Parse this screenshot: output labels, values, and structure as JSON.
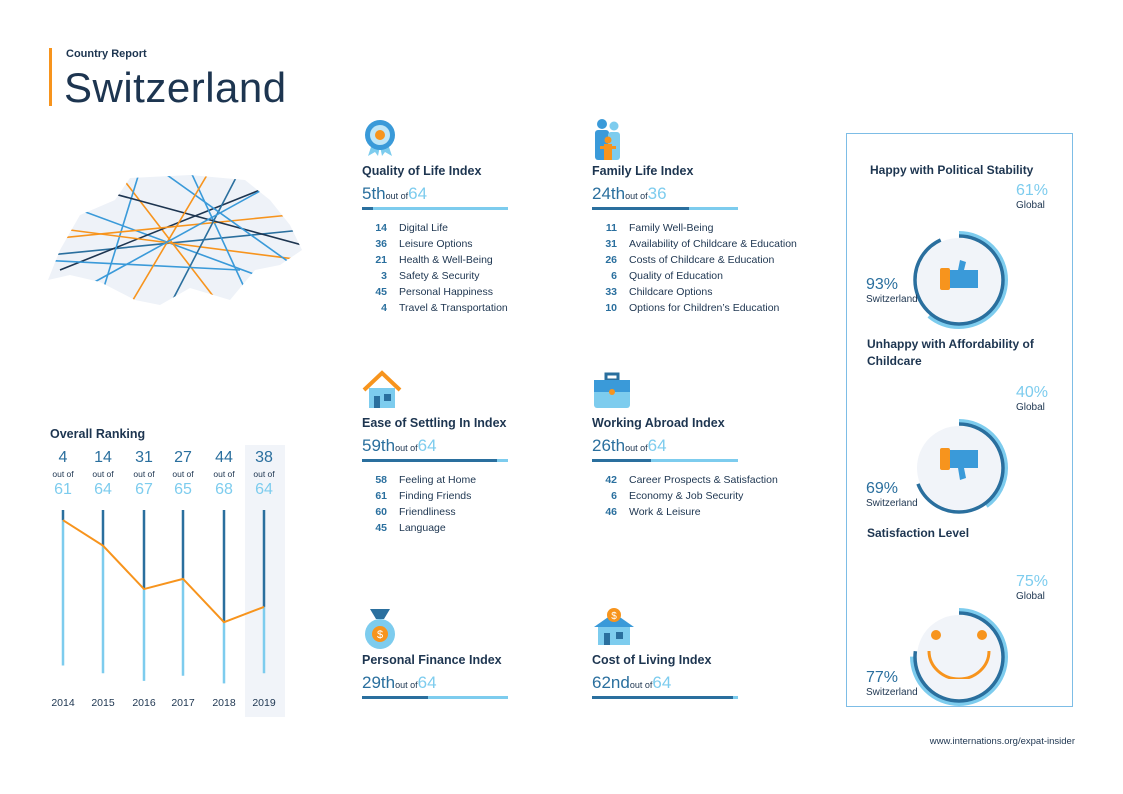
{
  "header": {
    "report_label": "Country Report",
    "title": "Switzerland"
  },
  "overall": {
    "title": "Overall Ranking",
    "out_of_label": "out of",
    "years": [
      {
        "year": "2014",
        "rank": 4,
        "total": 61
      },
      {
        "year": "2015",
        "rank": 14,
        "total": 64
      },
      {
        "year": "2016",
        "rank": 31,
        "total": 67
      },
      {
        "year": "2017",
        "rank": 27,
        "total": 65
      },
      {
        "year": "2018",
        "rank": 44,
        "total": 68
      },
      {
        "year": "2019",
        "rank": 38,
        "total": 64
      }
    ]
  },
  "indices": [
    {
      "title": "Quality of Life Index",
      "icon": "medal-icon",
      "rank": "5th",
      "rank_value": 5,
      "out_of": "out of",
      "total": "64",
      "total_value": 64,
      "items": [
        {
          "n": "14",
          "label": "Digital Life"
        },
        {
          "n": "36",
          "label": "Leisure Options"
        },
        {
          "n": "21",
          "label": "Health & Well-Being"
        },
        {
          "n": "3",
          "label": "Safety & Security"
        },
        {
          "n": "45",
          "label": "Personal Happiness"
        },
        {
          "n": "4",
          "label": "Travel & Transportation"
        }
      ]
    },
    {
      "title": "Family Life Index",
      "icon": "family-icon",
      "rank": "24th",
      "rank_value": 24,
      "out_of": "out of",
      "total": "36",
      "total_value": 36,
      "items": [
        {
          "n": "11",
          "label": "Family Well-Being"
        },
        {
          "n": "31",
          "label": "Availability of Childcare & Education"
        },
        {
          "n": "26",
          "label": "Costs of Childcare & Education"
        },
        {
          "n": "6",
          "label": "Quality of Education"
        },
        {
          "n": "33",
          "label": "Childcare Options"
        },
        {
          "n": "10",
          "label": "Options for Children’s Education"
        }
      ]
    },
    {
      "title": "Ease of Settling In Index",
      "icon": "house-icon",
      "rank": "59th",
      "rank_value": 59,
      "out_of": "out of",
      "total": "64",
      "total_value": 64,
      "items": [
        {
          "n": "58",
          "label": "Feeling at Home"
        },
        {
          "n": "61",
          "label": "Finding Friends"
        },
        {
          "n": "60",
          "label": "Friendliness"
        },
        {
          "n": "45",
          "label": "Language"
        }
      ]
    },
    {
      "title": "Working Abroad Index",
      "icon": "briefcase-icon",
      "rank": "26th",
      "rank_value": 26,
      "out_of": "out of",
      "total": "64",
      "total_value": 64,
      "items": [
        {
          "n": "42",
          "label": "Career Prospects & Satisfaction"
        },
        {
          "n": "6",
          "label": "Economy & Job Security"
        },
        {
          "n": "46",
          "label": "Work & Leisure"
        }
      ]
    },
    {
      "title": "Personal Finance Index",
      "icon": "money-bag-icon",
      "rank": "29th",
      "rank_value": 29,
      "out_of": "out of",
      "total": "64",
      "total_value": 64,
      "items": []
    },
    {
      "title": "Cost of Living Index",
      "icon": "house-dollar-icon",
      "rank": "62nd",
      "rank_value": 62,
      "out_of": "out of",
      "total": "64",
      "total_value": 64,
      "items": []
    }
  ],
  "panel": [
    {
      "title": "Happy with Political Stability",
      "global": "61%",
      "global_value": 61,
      "global_label": "Global",
      "country": "93%",
      "country_value": 93,
      "country_label": "Switzerland",
      "icon": "thumbs-up-icon"
    },
    {
      "title": "Unhappy with Affordability of Childcare",
      "global": "40%",
      "global_value": 40,
      "global_label": "Global",
      "country": "69%",
      "country_value": 69,
      "country_label": "Switzerland",
      "icon": "thumbs-down-icon"
    },
    {
      "title": "Satisfaction Level",
      "global": "75%",
      "global_value": 75,
      "global_label": "Global",
      "country": "77%",
      "country_value": 77,
      "country_label": "Switzerland",
      "icon": "smiley-icon"
    }
  ],
  "footer": "www.internations.org/expat-insider",
  "colors": {
    "dark": "#2a6f9e",
    "light": "#7dccee",
    "orange": "#f7941d",
    "text": "#1d3550",
    "panel_bg": "#f1f4f9"
  }
}
